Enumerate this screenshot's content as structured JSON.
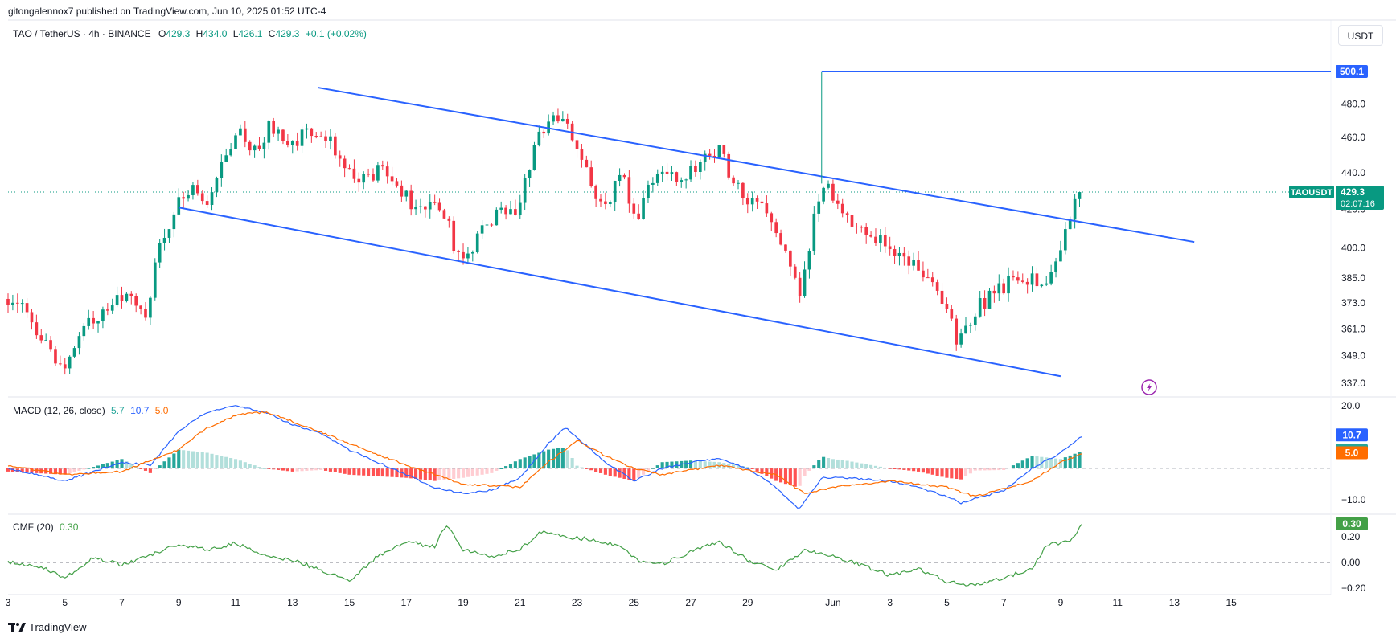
{
  "header": {
    "published_by": "gitongalennox7 published on TradingView.com, Jun 10, 2025 01:52 UTC-4"
  },
  "legend": {
    "symbol": "TAO / TetherUS · 4h · BINANCE",
    "o_label": "O",
    "o_value": "429.3",
    "h_label": "H",
    "h_value": "434.0",
    "l_label": "L",
    "l_value": "426.1",
    "c_label": "C",
    "c_value": "429.3",
    "change": "+0.1 (+0.02%)"
  },
  "toolbar": {
    "currency": "USDT"
  },
  "macd_legend": {
    "label": "MACD (12, 26, close)",
    "v1": "5.7",
    "v2": "10.7",
    "v3": "5.0"
  },
  "cmf_legend": {
    "label": "CMF (20)",
    "v1": "0.30"
  },
  "footer": {
    "brand": "TradingView"
  },
  "colors": {
    "up": "#089981",
    "down": "#f23645",
    "trendline": "#2962ff",
    "macd_line": "#2962ff",
    "signal_line": "#ff6d00",
    "hist_up_strong": "#26a69a",
    "hist_up_weak": "#b2dfdb",
    "hist_down_strong": "#ff5252",
    "hist_down_weak": "#ffcdd2",
    "cmf_line": "#43a047",
    "last_price": "#089981",
    "target_line": "#2962ff"
  },
  "chart_data": [
    {
      "type": "candlestick",
      "symbol": "TAOUSDT",
      "interval": "4h",
      "y_axis_ticks": [
        480.0,
        460.0,
        440.0,
        420.0,
        400.0,
        385.0,
        373.0,
        361.0,
        349.0,
        337.0
      ],
      "x_axis_ticks": [
        {
          "label": "3",
          "day": 3
        },
        {
          "label": "5",
          "day": 5
        },
        {
          "label": "7",
          "day": 7
        },
        {
          "label": "9",
          "day": 9
        },
        {
          "label": "11",
          "day": 11
        },
        {
          "label": "13",
          "day": 13
        },
        {
          "label": "15",
          "day": 15
        },
        {
          "label": "17",
          "day": 17
        },
        {
          "label": "19",
          "day": 19
        },
        {
          "label": "21",
          "day": 21
        },
        {
          "label": "23",
          "day": 23
        },
        {
          "label": "25",
          "day": 25
        },
        {
          "label": "27",
          "day": 27
        },
        {
          "label": "29",
          "day": 29
        },
        {
          "label": "Jun",
          "day": 32
        },
        {
          "label": "3",
          "day": 34
        },
        {
          "label": "5",
          "day": 36
        },
        {
          "label": "7",
          "day": 38
        },
        {
          "label": "9",
          "day": 40
        },
        {
          "label": "11",
          "day": 42
        },
        {
          "label": "13",
          "day": 44
        },
        {
          "label": "15",
          "day": 46
        }
      ],
      "ylim": [
        332,
        510
      ],
      "xlim": [
        3,
        49.5
      ],
      "price_anchors": [
        {
          "day": 3.0,
          "price": 375
        },
        {
          "day": 3.8,
          "price": 366
        },
        {
          "day": 4.5,
          "price": 350
        },
        {
          "day": 5.0,
          "price": 343
        },
        {
          "day": 5.8,
          "price": 362
        },
        {
          "day": 6.5,
          "price": 373
        },
        {
          "day": 7.2,
          "price": 378
        },
        {
          "day": 7.8,
          "price": 366
        },
        {
          "day": 8.3,
          "price": 398
        },
        {
          "day": 9.0,
          "price": 423
        },
        {
          "day": 9.5,
          "price": 433
        },
        {
          "day": 10.0,
          "price": 422
        },
        {
          "day": 10.6,
          "price": 448
        },
        {
          "day": 11.2,
          "price": 462
        },
        {
          "day": 11.8,
          "price": 452
        },
        {
          "day": 12.2,
          "price": 468
        },
        {
          "day": 12.8,
          "price": 452
        },
        {
          "day": 13.5,
          "price": 465
        },
        {
          "day": 14.3,
          "price": 458
        },
        {
          "day": 14.9,
          "price": 440
        },
        {
          "day": 15.5,
          "price": 437
        },
        {
          "day": 16.2,
          "price": 444
        },
        {
          "day": 16.8,
          "price": 430
        },
        {
          "day": 17.5,
          "price": 419
        },
        {
          "day": 18.2,
          "price": 424
        },
        {
          "day": 18.9,
          "price": 392
        },
        {
          "day": 19.5,
          "price": 405
        },
        {
          "day": 20.2,
          "price": 417
        },
        {
          "day": 20.9,
          "price": 420
        },
        {
          "day": 21.5,
          "price": 452
        },
        {
          "day": 22.0,
          "price": 472
        },
        {
          "day": 22.6,
          "price": 468
        },
        {
          "day": 23.2,
          "price": 447
        },
        {
          "day": 23.8,
          "price": 420
        },
        {
          "day": 24.6,
          "price": 437
        },
        {
          "day": 25.1,
          "price": 416
        },
        {
          "day": 25.9,
          "price": 446
        },
        {
          "day": 26.5,
          "price": 434
        },
        {
          "day": 27.3,
          "price": 447
        },
        {
          "day": 28.0,
          "price": 452
        },
        {
          "day": 28.6,
          "price": 432
        },
        {
          "day": 29.5,
          "price": 420
        },
        {
          "day": 30.2,
          "price": 400
        },
        {
          "day": 30.8,
          "price": 376
        },
        {
          "day": 31.3,
          "price": 412
        },
        {
          "day": 31.6,
          "price": 434
        },
        {
          "day": 32.4,
          "price": 418
        },
        {
          "day": 33.2,
          "price": 410
        },
        {
          "day": 34.0,
          "price": 398
        },
        {
          "day": 34.7,
          "price": 393
        },
        {
          "day": 35.4,
          "price": 386
        },
        {
          "day": 36.0,
          "price": 370
        },
        {
          "day": 36.4,
          "price": 355
        },
        {
          "day": 37.0,
          "price": 370
        },
        {
          "day": 38.0,
          "price": 380
        },
        {
          "day": 38.5,
          "price": 388
        },
        {
          "day": 39.3,
          "price": 383
        },
        {
          "day": 39.8,
          "price": 392
        },
        {
          "day": 40.3,
          "price": 416
        },
        {
          "day": 40.8,
          "price": 429
        }
      ],
      "annotations": {
        "channel_upper": {
          "start": {
            "day": 13.9,
            "price": 490
          },
          "end": {
            "day": 44.7,
            "price": 403
          }
        },
        "channel_lower": {
          "start": {
            "day": 9.0,
            "price": 421
          },
          "end": {
            "day": 40.0,
            "price": 340
          }
        },
        "target": {
          "value": "500.1",
          "start_day": 31.6
        },
        "last_price": {
          "symbol": "TAOUSDT",
          "value": "429.3",
          "countdown": "02:07:16"
        }
      }
    },
    {
      "type": "line",
      "name": "MACD (12, 26, close)",
      "y_axis_ticks": [
        20.0,
        -10.0
      ],
      "ylim": [
        -16,
        22
      ],
      "macd_anchors": [
        {
          "day": 3,
          "value": 0
        },
        {
          "day": 4,
          "value": -2
        },
        {
          "day": 5,
          "value": -4
        },
        {
          "day": 6,
          "value": -1
        },
        {
          "day": 7,
          "value": 2
        },
        {
          "day": 8,
          "value": 1
        },
        {
          "day": 9,
          "value": 12
        },
        {
          "day": 10,
          "value": 18
        },
        {
          "day": 11,
          "value": 20
        },
        {
          "day": 12,
          "value": 18
        },
        {
          "day": 13,
          "value": 14
        },
        {
          "day": 14,
          "value": 11
        },
        {
          "day": 15,
          "value": 6
        },
        {
          "day": 16,
          "value": 2
        },
        {
          "day": 17,
          "value": -2
        },
        {
          "day": 18,
          "value": -6
        },
        {
          "day": 19,
          "value": -8
        },
        {
          "day": 20,
          "value": -7
        },
        {
          "day": 21,
          "value": -3
        },
        {
          "day": 22,
          "value": 8
        },
        {
          "day": 22.6,
          "value": 13
        },
        {
          "day": 24,
          "value": 2
        },
        {
          "day": 25,
          "value": -4
        },
        {
          "day": 26,
          "value": 0
        },
        {
          "day": 27,
          "value": 2
        },
        {
          "day": 28,
          "value": 3
        },
        {
          "day": 29,
          "value": 0
        },
        {
          "day": 30,
          "value": -6
        },
        {
          "day": 30.8,
          "value": -13
        },
        {
          "day": 31.6,
          "value": -3
        },
        {
          "day": 32.4,
          "value": -3
        },
        {
          "day": 34,
          "value": -4
        },
        {
          "day": 35,
          "value": -6
        },
        {
          "day": 36,
          "value": -9
        },
        {
          "day": 36.5,
          "value": -11
        },
        {
          "day": 38,
          "value": -7
        },
        {
          "day": 39,
          "value": 0
        },
        {
          "day": 40,
          "value": 5
        },
        {
          "day": 40.8,
          "value": 10.7
        }
      ],
      "signal_anchors": [
        {
          "day": 3,
          "value": 1
        },
        {
          "day": 5,
          "value": -2
        },
        {
          "day": 7,
          "value": -1
        },
        {
          "day": 9,
          "value": 6
        },
        {
          "day": 10,
          "value": 13
        },
        {
          "day": 11,
          "value": 17
        },
        {
          "day": 12,
          "value": 18
        },
        {
          "day": 13,
          "value": 15
        },
        {
          "day": 15,
          "value": 8
        },
        {
          "day": 17,
          "value": 1
        },
        {
          "day": 19,
          "value": -5
        },
        {
          "day": 21,
          "value": -6
        },
        {
          "day": 22,
          "value": 2
        },
        {
          "day": 23,
          "value": 9
        },
        {
          "day": 24,
          "value": 4
        },
        {
          "day": 25,
          "value": 0
        },
        {
          "day": 26,
          "value": -2
        },
        {
          "day": 28,
          "value": 1
        },
        {
          "day": 30,
          "value": -2
        },
        {
          "day": 31,
          "value": -8
        },
        {
          "day": 32,
          "value": -6
        },
        {
          "day": 34,
          "value": -4
        },
        {
          "day": 36,
          "value": -6
        },
        {
          "day": 37,
          "value": -9
        },
        {
          "day": 39,
          "value": -4
        },
        {
          "day": 40,
          "value": 2
        },
        {
          "day": 40.8,
          "value": 5.0
        }
      ]
    },
    {
      "type": "line",
      "name": "CMF (20)",
      "y_axis_ticks": [
        0.2,
        0.0,
        -0.2
      ],
      "ylim": [
        -0.24,
        0.36
      ],
      "cmf_anchors": [
        {
          "day": 3,
          "value": 0.0
        },
        {
          "day": 4,
          "value": -0.02
        },
        {
          "day": 5,
          "value": -0.12
        },
        {
          "day": 6,
          "value": 0.04
        },
        {
          "day": 7,
          "value": -0.02
        },
        {
          "day": 8,
          "value": 0.06
        },
        {
          "day": 9,
          "value": 0.14
        },
        {
          "day": 10,
          "value": 0.1
        },
        {
          "day": 11,
          "value": 0.15
        },
        {
          "day": 12,
          "value": 0.05
        },
        {
          "day": 13,
          "value": 0.02
        },
        {
          "day": 14,
          "value": -0.06
        },
        {
          "day": 15,
          "value": -0.14
        },
        {
          "day": 16,
          "value": 0.05
        },
        {
          "day": 17,
          "value": 0.16
        },
        {
          "day": 18,
          "value": 0.12
        },
        {
          "day": 18.4,
          "value": 0.3
        },
        {
          "day": 19,
          "value": 0.1
        },
        {
          "day": 20,
          "value": 0.05
        },
        {
          "day": 21,
          "value": 0.1
        },
        {
          "day": 21.8,
          "value": 0.25
        },
        {
          "day": 22.5,
          "value": 0.2
        },
        {
          "day": 23.5,
          "value": 0.18
        },
        {
          "day": 24.5,
          "value": 0.13
        },
        {
          "day": 25.2,
          "value": 0.01
        },
        {
          "day": 26,
          "value": -0.01
        },
        {
          "day": 27,
          "value": 0.08
        },
        {
          "day": 28,
          "value": 0.16
        },
        {
          "day": 29,
          "value": 0.02
        },
        {
          "day": 30,
          "value": -0.06
        },
        {
          "day": 31,
          "value": 0.1
        },
        {
          "day": 32,
          "value": 0.05
        },
        {
          "day": 33,
          "value": -0.02
        },
        {
          "day": 34,
          "value": -0.1
        },
        {
          "day": 35,
          "value": -0.05
        },
        {
          "day": 36,
          "value": -0.15
        },
        {
          "day": 37,
          "value": -0.18
        },
        {
          "day": 38,
          "value": -0.12
        },
        {
          "day": 39,
          "value": -0.05
        },
        {
          "day": 39.5,
          "value": 0.14
        },
        {
          "day": 40.3,
          "value": 0.16
        },
        {
          "day": 40.8,
          "value": 0.3
        }
      ]
    }
  ]
}
